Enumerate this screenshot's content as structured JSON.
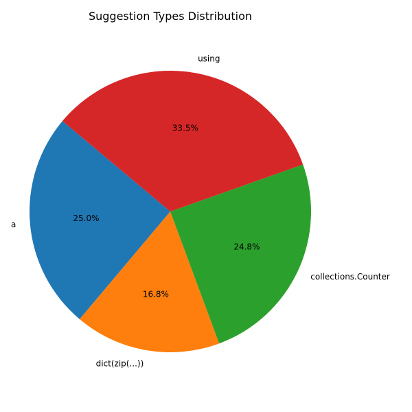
{
  "chart_data": {
    "type": "pie",
    "title": "Suggestion Types Distribution",
    "start_angle_deg": 140,
    "direction": "counterclockwise",
    "slices": [
      {
        "label": "a",
        "value": 25.0,
        "pct_label": "25.0%",
        "color": "#1f77b4"
      },
      {
        "label": "dict(zip(...))",
        "value": 16.8,
        "pct_label": "16.8%",
        "color": "#ff7f0e"
      },
      {
        "label": "collections.Counter",
        "value": 24.8,
        "pct_label": "24.8%",
        "color": "#2ca02c"
      },
      {
        "label": "using",
        "value": 33.5,
        "pct_label": "33.5%",
        "color": "#d62728"
      }
    ]
  }
}
